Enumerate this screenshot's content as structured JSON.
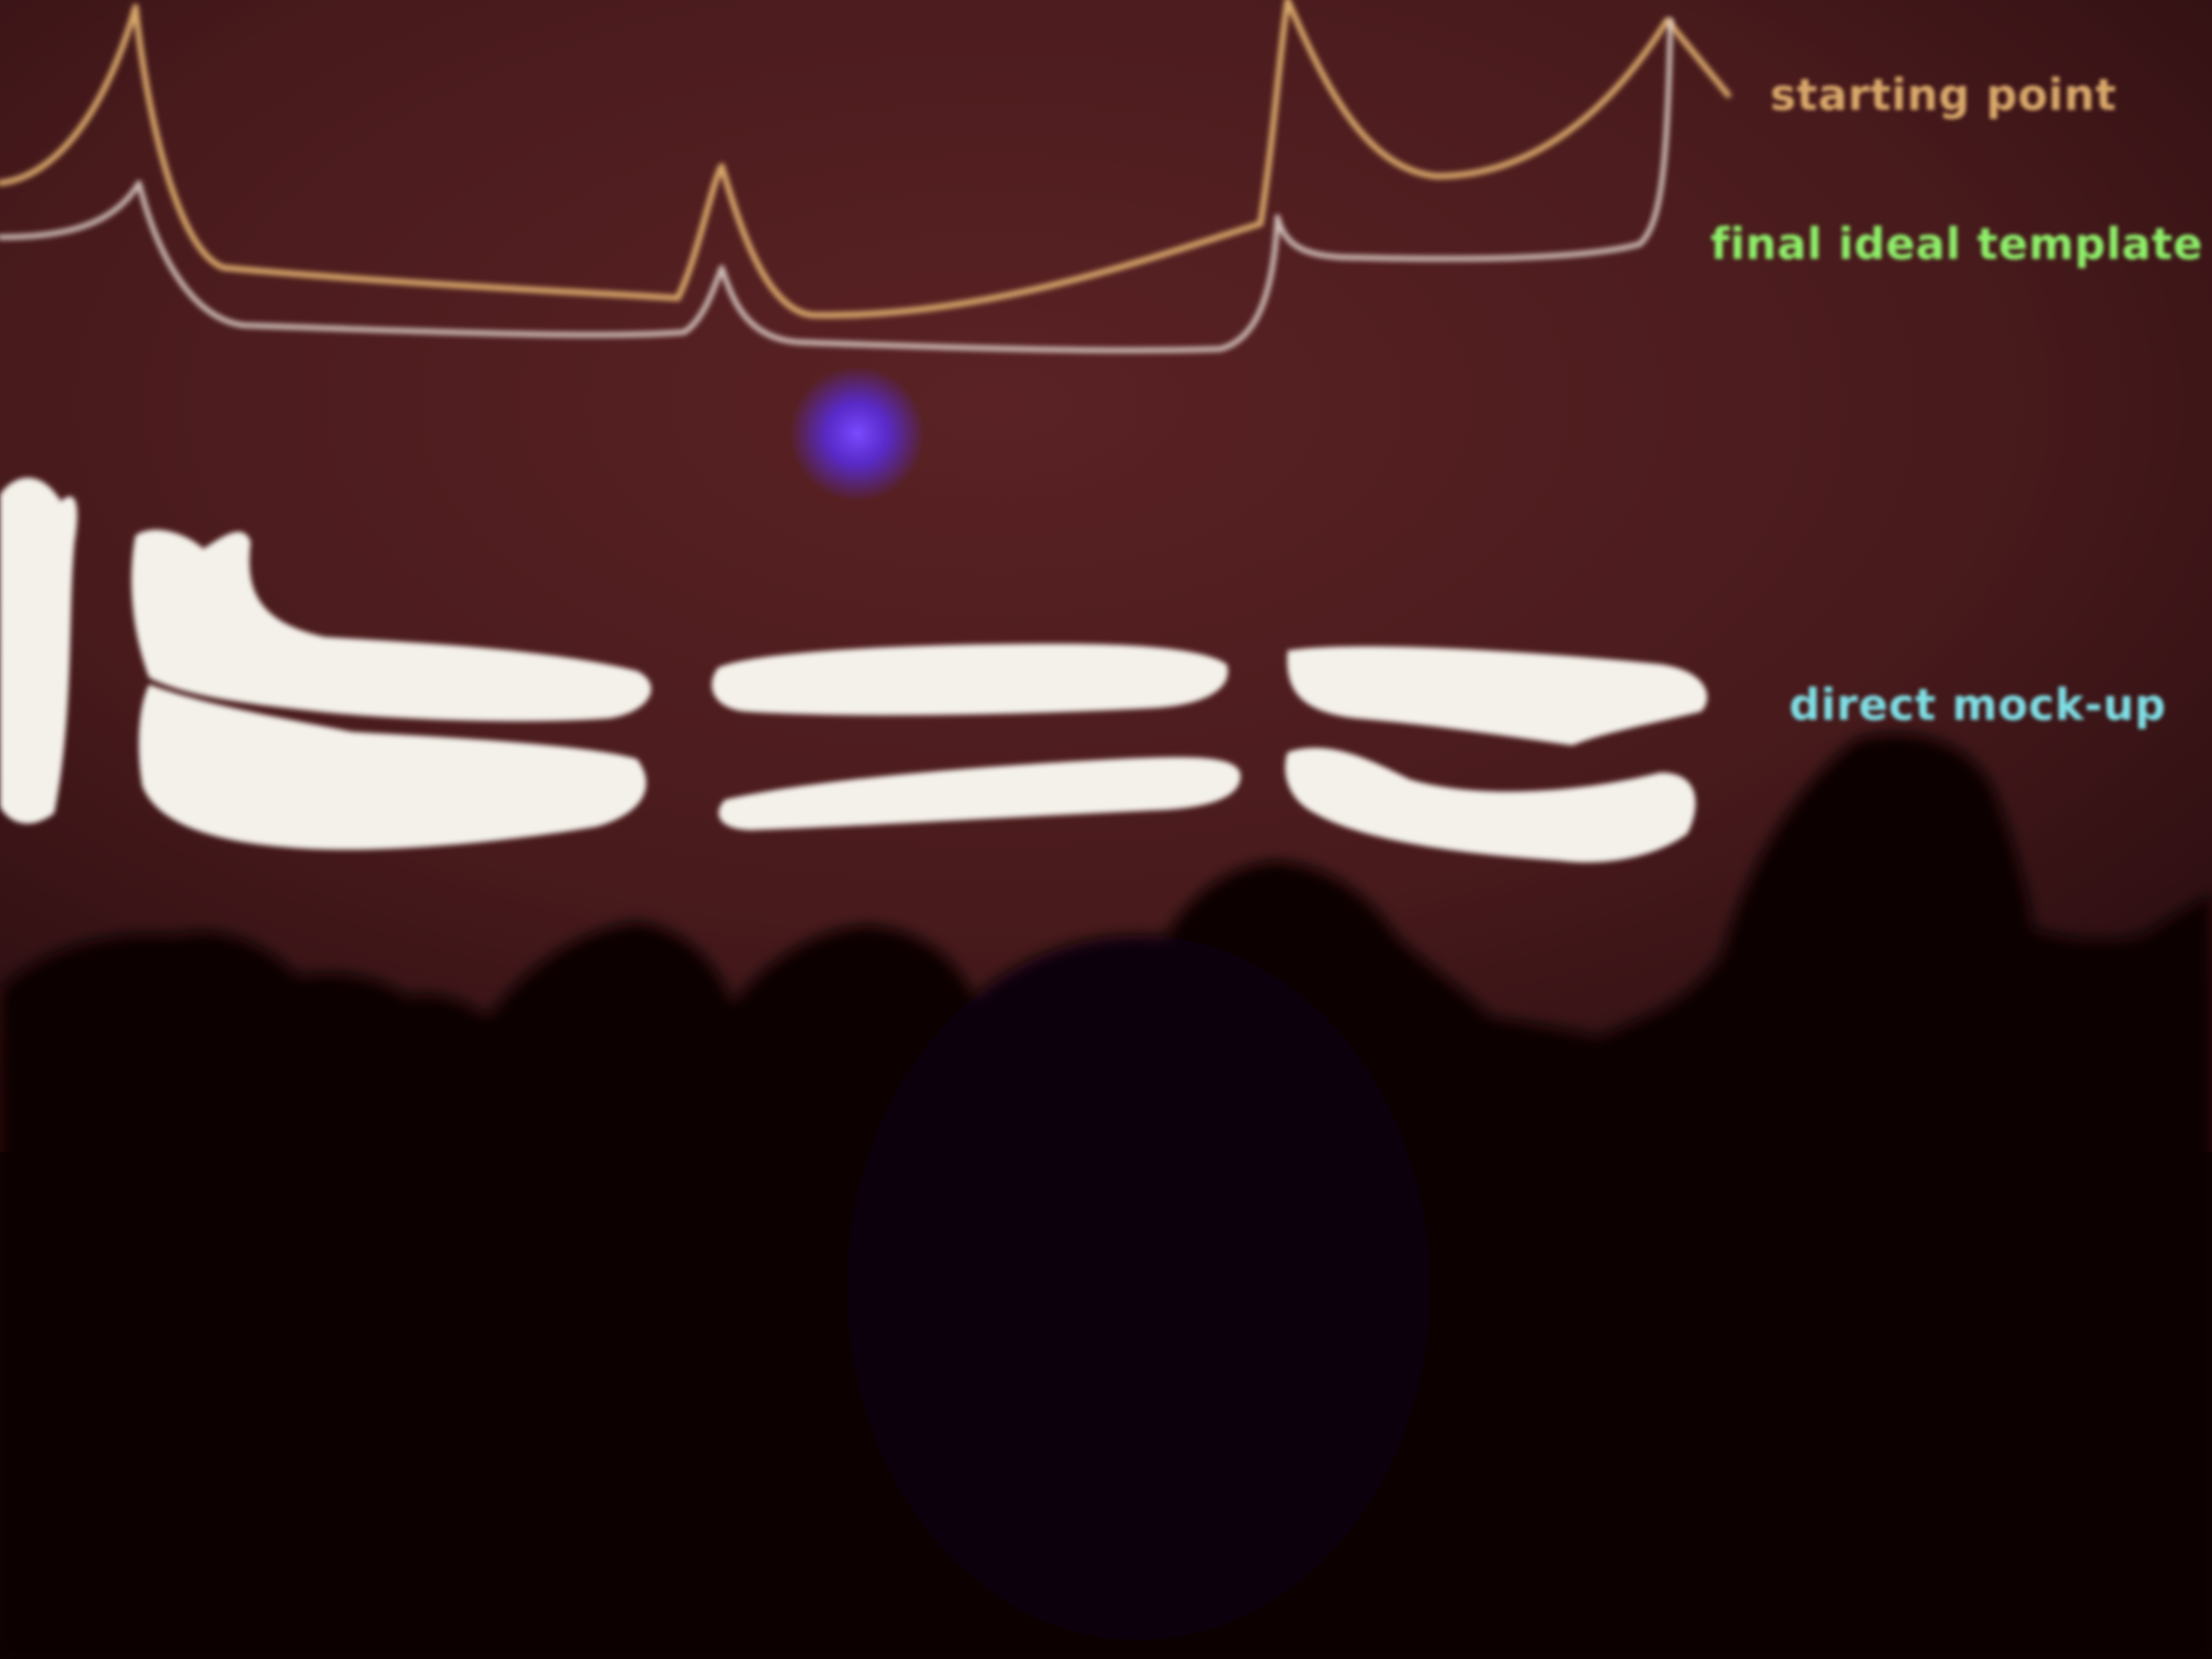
{
  "slide": {
    "background_color": "#4a1a1c",
    "legend": [
      {
        "key": "starting",
        "text": "starting point",
        "color": "#d8a86a"
      },
      {
        "key": "final",
        "text": "final ideal template",
        "color": "#8ef06a"
      },
      {
        "key": "mock",
        "text": "direct mock-up",
        "color": "#7fe0e6"
      }
    ],
    "shapes_color": "#f4f1ea",
    "pointer_dot_color": "#5a2cf0"
  },
  "audience": {
    "silhouette_color": "#080405"
  }
}
